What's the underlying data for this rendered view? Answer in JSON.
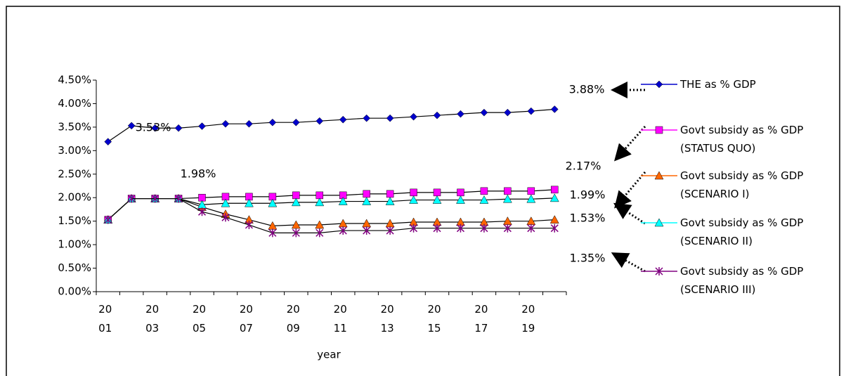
{
  "chart_data": {
    "type": "line",
    "x_label": "year",
    "categories": [
      [
        "20",
        "01"
      ],
      null,
      [
        "20",
        "03"
      ],
      null,
      [
        "20",
        "05"
      ],
      null,
      [
        "20",
        "07"
      ],
      null,
      [
        "20",
        "09"
      ],
      null,
      [
        "20",
        "11"
      ],
      null,
      [
        "20",
        "13"
      ],
      null,
      [
        "20",
        "15"
      ],
      null,
      [
        "20",
        "17"
      ],
      null,
      [
        "20",
        "19"
      ],
      null
    ],
    "ylim": [
      0,
      4.5
    ],
    "yticks": [
      {
        "value": 0,
        "label": "0.00%"
      },
      {
        "value": 0.5,
        "label": "0.50%"
      },
      {
        "value": 1,
        "label": "1.00%"
      },
      {
        "value": 1.5,
        "label": "1.50%"
      },
      {
        "value": 2,
        "label": "2.00%"
      },
      {
        "value": 2.5,
        "label": "2.50%"
      },
      {
        "value": 3,
        "label": "3.00%"
      },
      {
        "value": 3.5,
        "label": "3.50%"
      },
      {
        "value": 4,
        "label": "4.00%"
      },
      {
        "value": 4.5,
        "label": "4.50%"
      }
    ],
    "series": [
      {
        "name": "THE as % GDP",
        "color": "#0000cc",
        "marker": "diamond",
        "values": [
          3.19,
          3.53,
          3.48,
          3.48,
          3.52,
          3.57,
          3.57,
          3.6,
          3.6,
          3.63,
          3.66,
          3.69,
          3.69,
          3.72,
          3.75,
          3.78,
          3.81,
          3.81,
          3.84,
          3.88
        ]
      },
      {
        "name": "Govt subsidy as % GDP (STATUS QUO)",
        "color": "#ff00ff",
        "marker": "square",
        "values": [
          1.53,
          1.98,
          1.98,
          1.98,
          2.0,
          2.02,
          2.02,
          2.02,
          2.05,
          2.05,
          2.05,
          2.08,
          2.08,
          2.11,
          2.11,
          2.11,
          2.14,
          2.14,
          2.14,
          2.17
        ]
      },
      {
        "name": "Govt subsidy as % GDP (SCENARIO I)",
        "color": "#ff6600",
        "marker": "triangle",
        "values": [
          1.53,
          1.98,
          1.98,
          1.98,
          1.8,
          1.65,
          1.53,
          1.4,
          1.42,
          1.42,
          1.45,
          1.45,
          1.45,
          1.48,
          1.48,
          1.48,
          1.48,
          1.5,
          1.5,
          1.53
        ]
      },
      {
        "name": "Govt subsidy as % GDP (SCENARIO II)",
        "color": "#00ffff",
        "marker": "triangle",
        "values": [
          1.53,
          1.98,
          1.98,
          1.98,
          1.85,
          1.88,
          1.88,
          1.88,
          1.9,
          1.9,
          1.92,
          1.92,
          1.92,
          1.95,
          1.95,
          1.95,
          1.95,
          1.97,
          1.97,
          1.99
        ]
      },
      {
        "name": "Govt subsidy as % GDP (SCENARIO III)",
        "color": "#800080",
        "marker": "star",
        "values": [
          1.53,
          1.98,
          1.98,
          1.98,
          1.7,
          1.58,
          1.42,
          1.25,
          1.25,
          1.25,
          1.3,
          1.3,
          1.3,
          1.35,
          1.35,
          1.35,
          1.35,
          1.35,
          1.35,
          1.35
        ]
      }
    ],
    "annotations": [
      {
        "text": "3.53%",
        "color": "#0000cc"
      },
      {
        "text": "1.98%",
        "color": "#000000"
      },
      {
        "text": "3.88%",
        "color": "#0000cc"
      },
      {
        "text": "2.17%",
        "color": "#ff00ff"
      },
      {
        "text": "1.99%",
        "color": "#00ffff"
      },
      {
        "text": "1.53%",
        "color": "#ff6600"
      },
      {
        "text": "1.35%",
        "color": "#800080"
      }
    ]
  }
}
